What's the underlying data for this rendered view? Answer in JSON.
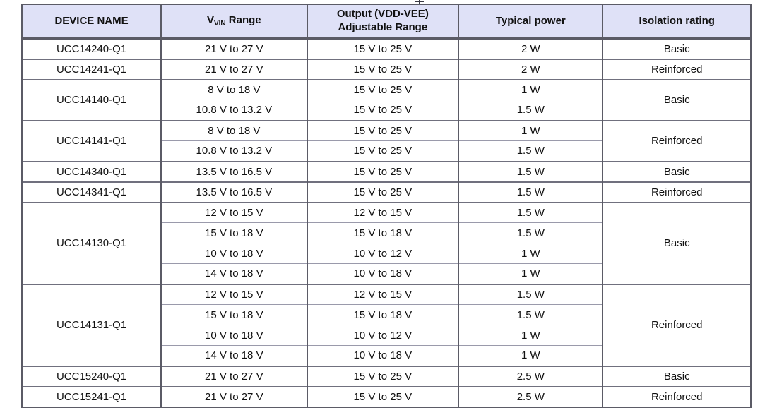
{
  "colors": {
    "header_bg": "#dfe1f7",
    "border_dark": "#5b5b66",
    "border_mid": "#70707e",
    "border_light": "#9a9aab",
    "text": "#111111"
  },
  "table": {
    "header": {
      "device": "DEVICE NAME",
      "vvin_prefix": "V",
      "vvin_sub": "VIN",
      "vvin_rest": " Range",
      "output": "Output (VDD-VEE)\nAdjustable Range",
      "power": "Typical power",
      "isolation": "Isolation rating"
    },
    "groups": [
      {
        "device": "UCC14240-Q1",
        "isolation": "Basic",
        "rows": [
          {
            "vin": "21 V to 27 V",
            "output": "15 V to 25 V",
            "power": "2 W"
          }
        ]
      },
      {
        "device": "UCC14241-Q1",
        "isolation": "Reinforced",
        "rows": [
          {
            "vin": "21 V to 27 V",
            "output": "15 V to 25 V",
            "power": "2 W"
          }
        ]
      },
      {
        "device": "UCC14140-Q1",
        "isolation": "Basic",
        "rows": [
          {
            "vin": "8 V to 18 V",
            "output": "15 V to 25 V",
            "power": "1 W"
          },
          {
            "vin": "10.8 V to 13.2 V",
            "output": "15 V to 25 V",
            "power": "1.5 W"
          }
        ]
      },
      {
        "device": "UCC14141-Q1",
        "isolation": "Reinforced",
        "rows": [
          {
            "vin": "8 V to 18 V",
            "output": "15 V to 25 V",
            "power": "1 W"
          },
          {
            "vin": "10.8 V to 13.2 V",
            "output": "15 V to 25 V",
            "power": "1.5 W"
          }
        ]
      },
      {
        "device": "UCC14340-Q1",
        "isolation": "Basic",
        "rows": [
          {
            "vin": "13.5 V to 16.5 V",
            "output": "15 V to 25 V",
            "power": "1.5 W"
          }
        ]
      },
      {
        "device": "UCC14341-Q1",
        "isolation": "Reinforced",
        "rows": [
          {
            "vin": "13.5 V to 16.5 V",
            "output": "15 V to 25 V",
            "power": "1.5 W"
          }
        ]
      },
      {
        "device": "UCC14130-Q1",
        "isolation": "Basic",
        "rows": [
          {
            "vin": "12 V to 15 V",
            "output": "12 V to 15 V",
            "power": "1.5 W"
          },
          {
            "vin": "15 V to 18 V",
            "output": "15 V to 18 V",
            "power": "1.5 W"
          },
          {
            "vin": "10 V to 18 V",
            "output": "10 V to 12 V",
            "power": "1 W"
          },
          {
            "vin": "14 V to 18 V",
            "output": "10 V to 18 V",
            "power": "1 W"
          }
        ]
      },
      {
        "device": "UCC14131-Q1",
        "isolation": "Reinforced",
        "rows": [
          {
            "vin": "12 V to 15 V",
            "output": "12 V to 15 V",
            "power": "1.5 W"
          },
          {
            "vin": "15 V to 18 V",
            "output": "15 V to 18 V",
            "power": "1.5 W"
          },
          {
            "vin": "10 V to 18 V",
            "output": "10 V to 12 V",
            "power": "1 W"
          },
          {
            "vin": "14 V to 18 V",
            "output": "10 V to 18 V",
            "power": "1 W"
          }
        ]
      },
      {
        "device": "UCC15240-Q1",
        "isolation": "Basic",
        "rows": [
          {
            "vin": "21 V to 27 V",
            "output": "15 V to 25 V",
            "power": "2.5 W"
          }
        ]
      },
      {
        "device": "UCC15241-Q1",
        "isolation": "Reinforced",
        "rows": [
          {
            "vin": "21 V to 27 V",
            "output": "15 V to 25 V",
            "power": "2.5 W"
          }
        ]
      }
    ]
  }
}
